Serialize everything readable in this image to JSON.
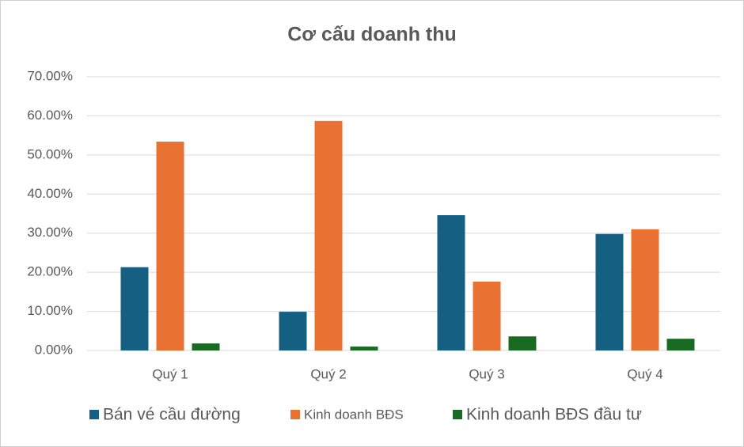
{
  "chart_data": {
    "type": "bar",
    "title": "Cơ cấu doanh thu",
    "categories": [
      "Quý 1",
      "Quý 2",
      "Quý 3",
      "Quý 4"
    ],
    "series": [
      {
        "name": "Bán vé cầu đường",
        "color": "#156082",
        "values": [
          21.3,
          9.9,
          34.6,
          29.8
        ]
      },
      {
        "name": "Kinh doanh BĐS",
        "color": "#e97132",
        "values": [
          53.4,
          58.7,
          17.6,
          31.0
        ]
      },
      {
        "name": "Kinh doanh BĐS đầu tư",
        "color": "#196b24",
        "values": [
          1.8,
          1.0,
          3.6,
          3.0
        ]
      }
    ],
    "ylim": [
      0,
      70
    ],
    "yticks": [
      {
        "value": 0,
        "label": "0.00%"
      },
      {
        "value": 10,
        "label": "10.00%"
      },
      {
        "value": 20,
        "label": "20.00%"
      },
      {
        "value": 30,
        "label": "30.00%"
      },
      {
        "value": 40,
        "label": "40.00%"
      },
      {
        "value": 50,
        "label": "50.00%"
      },
      {
        "value": 60,
        "label": "60.00%"
      },
      {
        "value": 70,
        "label": "70.00%"
      }
    ],
    "grid": true,
    "legend": "bottom"
  }
}
